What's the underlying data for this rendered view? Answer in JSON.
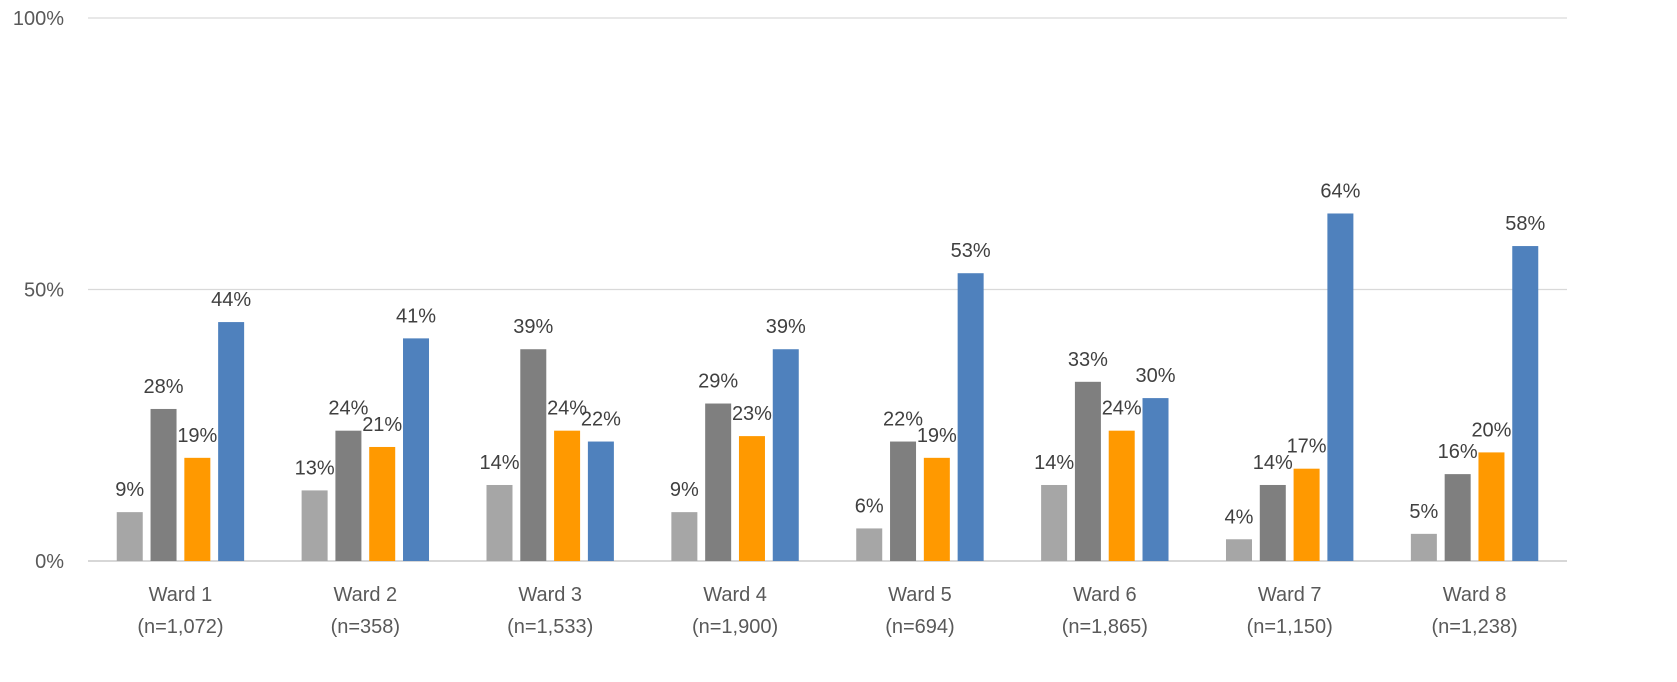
{
  "chart_data": {
    "type": "bar",
    "title": "",
    "xlabel": "",
    "ylabel": "",
    "ylim": [
      0,
      100
    ],
    "y_ticks": [
      0,
      50,
      100
    ],
    "y_tick_labels": [
      "0%",
      "50%",
      "100%"
    ],
    "grid": true,
    "legend": "none",
    "categories": [
      [
        "Ward 1",
        "(n=1,072)"
      ],
      [
        "Ward 2",
        "(n=358)"
      ],
      [
        "Ward 3",
        "(n=1,533)"
      ],
      [
        "Ward 4",
        "(n=1,900)"
      ],
      [
        "Ward 5",
        "(n=694)"
      ],
      [
        "Ward 6",
        "(n=1,865)"
      ],
      [
        "Ward 7",
        "(n=1,150)"
      ],
      [
        "Ward 8",
        "(n=1,238)"
      ]
    ],
    "series": [
      {
        "color": "#a6a6a6",
        "values": [
          9,
          13,
          14,
          9,
          6,
          14,
          4,
          5
        ],
        "labels": [
          "9%",
          "13%",
          "14%",
          "9%",
          "6%",
          "14%",
          "4%",
          "5%"
        ]
      },
      {
        "color": "#7f7f7f",
        "values": [
          28,
          24,
          39,
          29,
          22,
          33,
          14,
          16
        ],
        "labels": [
          "28%",
          "24%",
          "39%",
          "29%",
          "22%",
          "33%",
          "14%",
          "16%"
        ]
      },
      {
        "color": "#ff9900",
        "values": [
          19,
          21,
          24,
          23,
          19,
          24,
          17,
          20
        ],
        "labels": [
          "19%",
          "21%",
          "24%",
          "23%",
          "19%",
          "24%",
          "17%",
          "20%"
        ]
      },
      {
        "color": "#4f81bd",
        "values": [
          44,
          41,
          22,
          39,
          53,
          30,
          64,
          58
        ],
        "labels": [
          "44%",
          "41%",
          "22%",
          "39%",
          "53%",
          "30%",
          "64%",
          "58%"
        ]
      }
    ],
    "colors": {
      "gridline": "#d9d9d9",
      "axis": "#bfbfbf",
      "tick_text": "#595959",
      "data_label_text": "#404040"
    }
  }
}
